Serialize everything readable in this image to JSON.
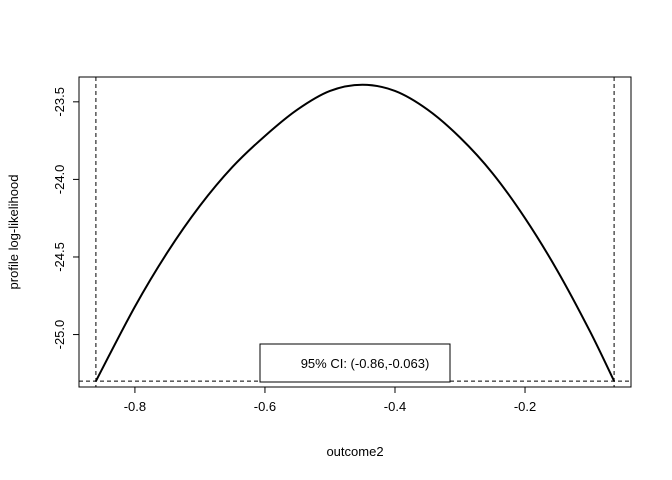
{
  "chart_data": {
    "type": "line",
    "title": "",
    "xlabel": "outcome2",
    "ylabel": "profile log-likelihood",
    "xlim": [
      -0.886,
      -0.037
    ],
    "ylim": [
      -25.338,
      -23.34
    ],
    "x_ticks": [
      -0.8,
      -0.6,
      -0.4,
      -0.2
    ],
    "x_tick_labels": [
      "-0.8",
      "-0.6",
      "-0.4",
      "-0.2"
    ],
    "y_ticks": [
      -25.0,
      -24.5,
      -24.0,
      -23.5
    ],
    "y_tick_labels": [
      "-25.0",
      "-24.5",
      "-24.0",
      "-23.5"
    ],
    "grid": false,
    "series": [
      {
        "x": [
          -0.86,
          -0.8,
          -0.75,
          -0.7,
          -0.65,
          -0.6,
          -0.55,
          -0.5,
          -0.45,
          -0.4,
          -0.35,
          -0.3,
          -0.25,
          -0.2,
          -0.15,
          -0.1,
          -0.063
        ],
        "y": [
          -25.3,
          -24.82,
          -24.47,
          -24.17,
          -23.92,
          -23.72,
          -23.55,
          -23.43,
          -23.39,
          -23.43,
          -23.55,
          -23.73,
          -23.96,
          -24.25,
          -24.59,
          -24.98,
          -25.3
        ]
      }
    ],
    "ci_lower": -0.86,
    "ci_upper": -0.063,
    "cutoff_y": -25.3,
    "legend": {
      "text": "95% CI: (-0.86,-0.063)",
      "position": "bottom-center"
    }
  }
}
